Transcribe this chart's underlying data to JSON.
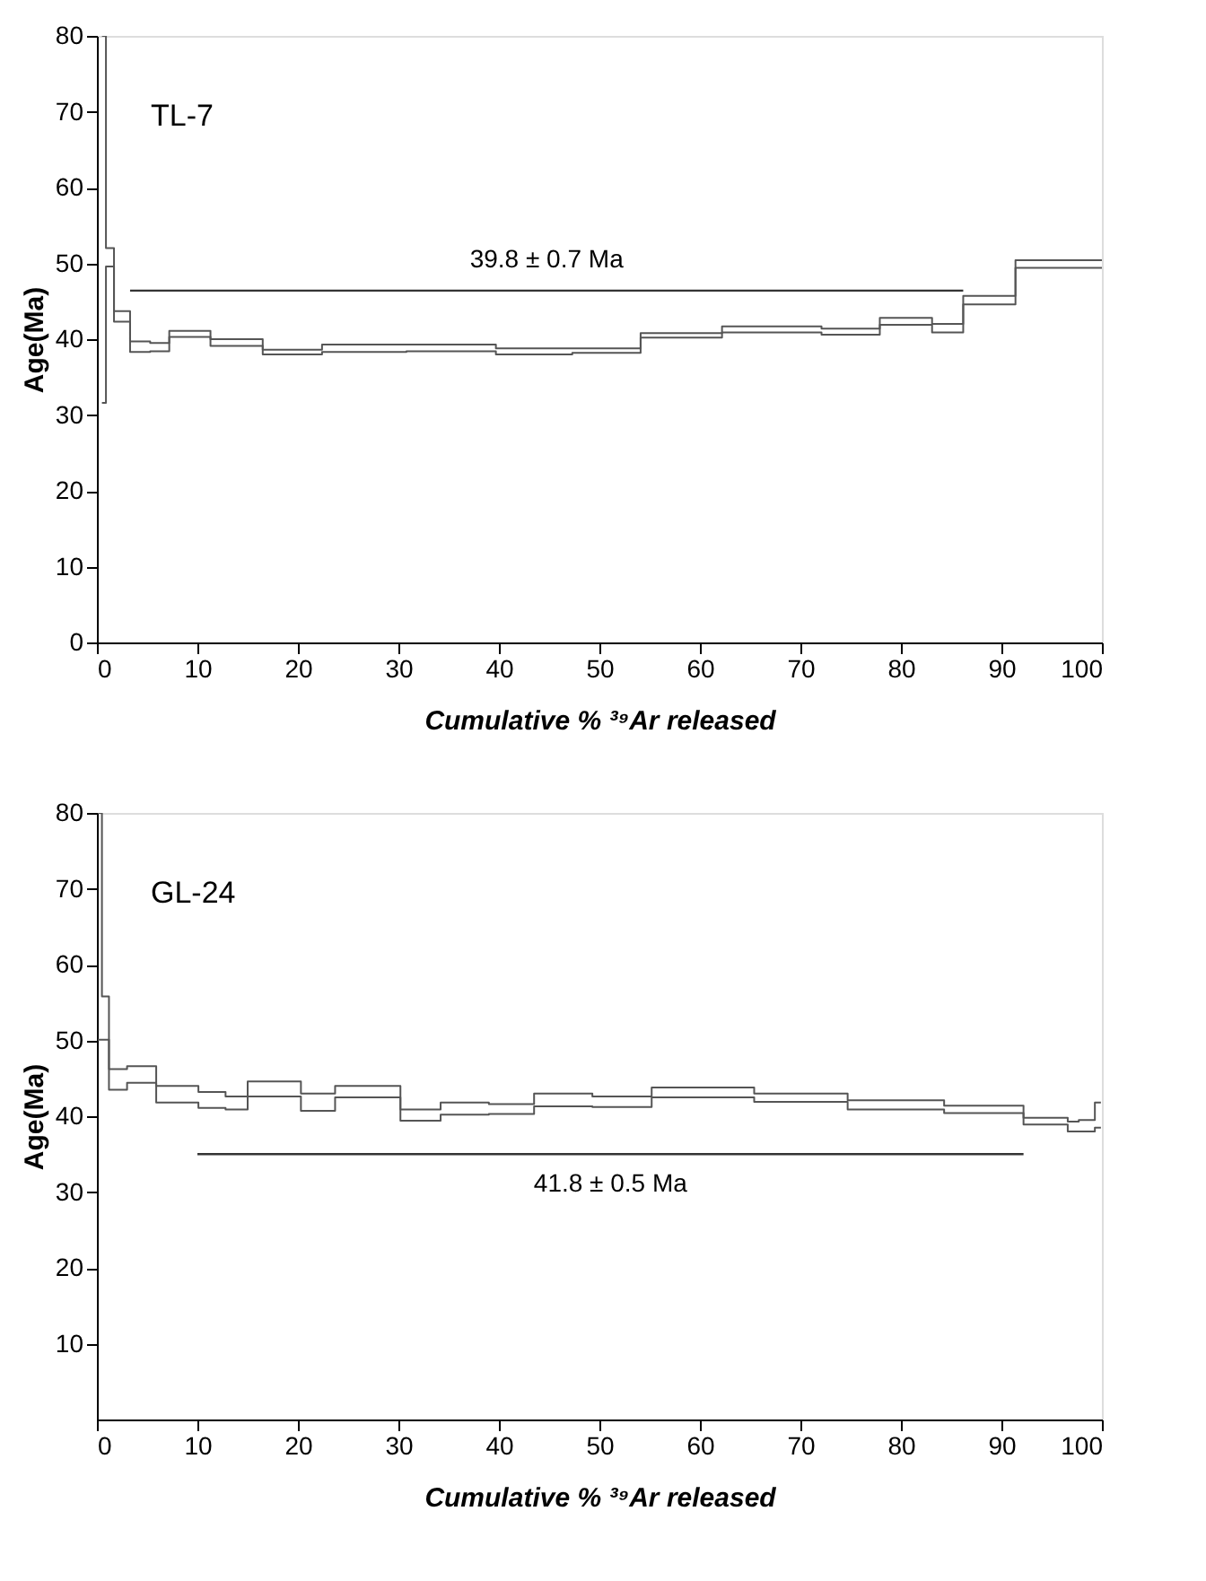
{
  "chart_data": [
    {
      "type": "step",
      "title": "TL-7",
      "xlabel": "Cumulative % ³⁹Ar released",
      "ylabel": "Age(Ma)",
      "xlim": [
        0,
        100
      ],
      "xticks": [
        0,
        10,
        20,
        30,
        40,
        50,
        60,
        70,
        80,
        90,
        100
      ],
      "ylim": [
        0,
        80
      ],
      "yticks": [
        0,
        10,
        20,
        30,
        40,
        50,
        60,
        70,
        80
      ],
      "series": [
        {
          "color": "#555555",
          "x": [
            0.5,
            0.9,
            1.7,
            3.3,
            5.3,
            7.2,
            11.3,
            16.5,
            22.4,
            30.8,
            39.7,
            47.3,
            54.1,
            62.2,
            72.1,
            77.9,
            83.1,
            86.2,
            91.4,
            100
          ],
          "values": [
            80,
            52.0,
            43.7,
            39.7,
            39.5,
            41.1,
            40.0,
            38.6,
            39.3,
            39.3,
            38.8,
            38.8,
            40.8,
            41.7,
            41.4,
            42.8,
            42.0,
            45.7,
            50.4,
            50.4
          ]
        },
        {
          "color": "#555555",
          "x": [
            0.5,
            0.9,
            1.7,
            3.3,
            5.3,
            7.2,
            11.3,
            16.5,
            22.4,
            30.8,
            39.7,
            47.3,
            54.1,
            62.2,
            72.1,
            77.9,
            83.1,
            86.2,
            91.4,
            100
          ],
          "values": [
            31.6,
            49.6,
            42.3,
            38.3,
            38.4,
            40.3,
            39.1,
            38.0,
            38.3,
            38.4,
            38.0,
            38.2,
            40.2,
            40.9,
            40.6,
            41.9,
            40.9,
            44.6,
            49.4,
            49.4
          ]
        },
        {
          "type": "line",
          "color": "#333333",
          "x": [
            3.3,
            86.2
          ],
          "values": [
            46.4,
            46.4
          ]
        }
      ],
      "annotations": [
        "39.8 ± 0.7 Ma"
      ]
    },
    {
      "type": "step",
      "title": "GL-24",
      "xlabel": "Cumulative % ³⁹Ar released",
      "ylabel": "Age(Ma)",
      "xlim": [
        0,
        100
      ],
      "xticks": [
        0,
        10,
        20,
        30,
        40,
        50,
        60,
        70,
        80,
        90,
        100
      ],
      "ylim": [
        0,
        80
      ],
      "yticks": [
        10,
        20,
        30,
        40,
        50,
        60,
        70,
        80
      ],
      "series": [
        {
          "color": "#555555",
          "x": [
            0.1,
            0.5,
            1.2,
            3.0,
            5.9,
            10.1,
            12.8,
            15.0,
            20.3,
            23.7,
            30.2,
            34.2,
            39.0,
            43.5,
            49.3,
            55.2,
            65.4,
            74.7,
            84.3,
            92.2,
            96.6,
            97.7,
            99.3,
            99.9
          ],
          "values": [
            80,
            55.8,
            46.2,
            46.6,
            44.0,
            43.2,
            42.6,
            44.6,
            43.0,
            44.0,
            40.9,
            41.8,
            41.6,
            43.0,
            42.6,
            43.8,
            43.0,
            42.1,
            41.4,
            39.8,
            39.3,
            39.5,
            41.8,
            41.8
          ]
        },
        {
          "color": "#555555",
          "x": [
            0.1,
            0.5,
            1.2,
            3.0,
            5.9,
            10.1,
            12.8,
            15.0,
            20.3,
            23.7,
            30.2,
            34.2,
            39.0,
            43.5,
            49.3,
            55.2,
            65.4,
            74.7,
            84.3,
            92.2,
            96.6,
            97.7,
            99.3,
            99.9
          ],
          "values": [
            50.1,
            50.1,
            43.5,
            44.4,
            41.8,
            41.1,
            40.9,
            42.6,
            40.7,
            42.5,
            39.4,
            40.2,
            40.3,
            41.3,
            41.2,
            42.5,
            41.9,
            40.9,
            40.4,
            38.9,
            38.0,
            38.0,
            38.5,
            38.5
          ]
        },
        {
          "type": "line",
          "color": "#333333",
          "x": [
            10.0,
            92.2
          ],
          "values": [
            35.0,
            35.0
          ]
        }
      ],
      "annotations": [
        "41.8 ± 0.5 Ma"
      ]
    }
  ]
}
